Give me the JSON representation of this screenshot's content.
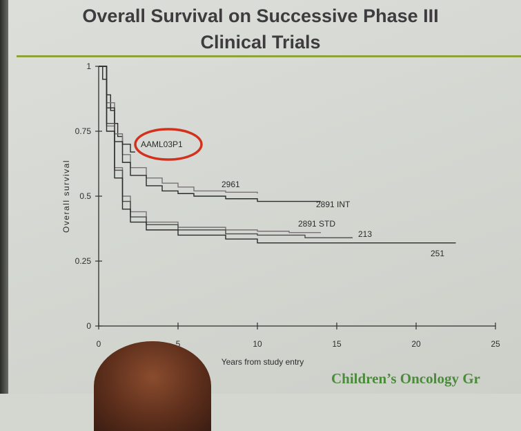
{
  "slide": {
    "title_line1": "Overall Survival on Successive Phase III",
    "title_line2": "Clinical Trials",
    "footer": "Children’s Oncology Gr"
  },
  "colors": {
    "title": "#3f3c3f",
    "rule": "#8ea23a",
    "footer": "#4c8a3c",
    "highlight_ellipse": "#d2311d",
    "curves_dark": "#2a2a2a",
    "curves_grey": "#7a7275"
  },
  "chart_data": {
    "type": "line",
    "title": "",
    "xlabel": "Years from study entry",
    "ylabel": "Overall survival",
    "xlim": [
      0,
      25
    ],
    "ylim": [
      0,
      1
    ],
    "x_ticks": [
      "0",
      "5",
      "10",
      "15",
      "20",
      "25"
    ],
    "x_tick_values": [
      0,
      5,
      10,
      15,
      20,
      25
    ],
    "y_ticks": [
      "0",
      "0.25",
      "0.5",
      "0.75",
      "1"
    ],
    "y_tick_values": [
      0,
      0.25,
      0.5,
      0.75,
      1
    ],
    "grid": false,
    "legend": "none",
    "highlighted_series": "AAML03P1",
    "series": [
      {
        "name": "AAML03P1",
        "color": "#2a2a2a",
        "x": [
          0,
          0.25,
          0.5,
          0.75,
          1.0,
          1.2,
          1.5,
          2.0,
          2.3
        ],
        "y": [
          1.0,
          0.95,
          0.89,
          0.83,
          0.78,
          0.73,
          0.7,
          0.67,
          0.67
        ]
      },
      {
        "name": "2961",
        "color": "#7a7275",
        "x": [
          0,
          0.5,
          1,
          1.5,
          2,
          3,
          4,
          5,
          6,
          8,
          10
        ],
        "y": [
          1.0,
          0.86,
          0.74,
          0.66,
          0.61,
          0.57,
          0.55,
          0.535,
          0.52,
          0.515,
          0.51
        ]
      },
      {
        "name": "2891 INT",
        "color": "#2a2a2a",
        "x": [
          0,
          0.5,
          1,
          1.5,
          2,
          3,
          4,
          5,
          6,
          8,
          10,
          14
        ],
        "y": [
          1.0,
          0.84,
          0.71,
          0.63,
          0.58,
          0.54,
          0.52,
          0.51,
          0.5,
          0.49,
          0.48,
          0.48
        ]
      },
      {
        "name": "2891 STD",
        "color": "#7a7275",
        "x": [
          0,
          0.5,
          1,
          1.5,
          2,
          3,
          5,
          8,
          10,
          12,
          14
        ],
        "y": [
          1.0,
          0.77,
          0.61,
          0.5,
          0.44,
          0.4,
          0.38,
          0.37,
          0.365,
          0.36,
          0.36
        ]
      },
      {
        "name": "213",
        "color": "#4a4a4a",
        "x": [
          0,
          0.5,
          1,
          1.5,
          2,
          3,
          5,
          8,
          10,
          13,
          16
        ],
        "y": [
          1.0,
          0.78,
          0.6,
          0.48,
          0.42,
          0.39,
          0.37,
          0.355,
          0.35,
          0.34,
          0.34
        ]
      },
      {
        "name": "251",
        "color": "#2a2a2a",
        "x": [
          0,
          0.5,
          1,
          1.5,
          2,
          3,
          5,
          8,
          10,
          15,
          22.5
        ],
        "y": [
          1.0,
          0.75,
          0.57,
          0.45,
          0.4,
          0.37,
          0.35,
          0.335,
          0.32,
          0.32,
          0.32
        ]
      }
    ]
  }
}
